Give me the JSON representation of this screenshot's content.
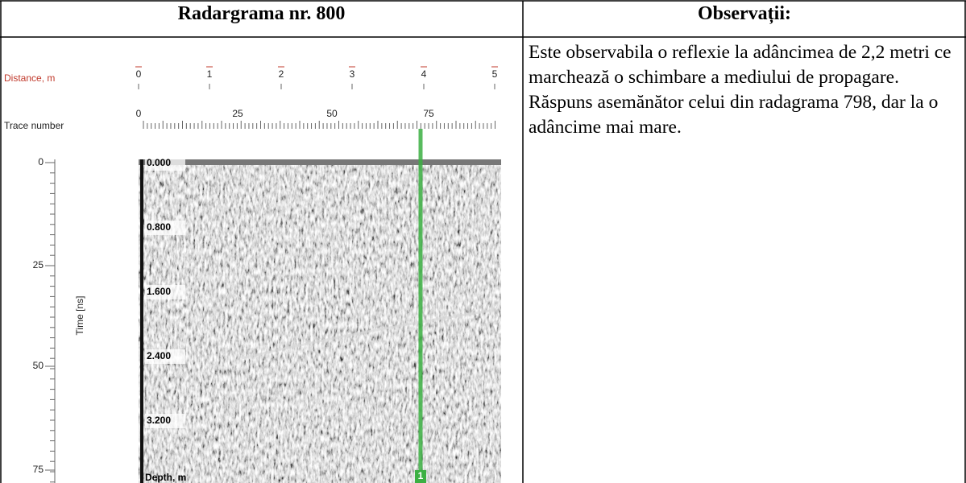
{
  "table": {
    "headers": [
      "Radargrama nr. 800",
      "Observații:"
    ],
    "observations": [
      "Este observabila o reflexie la adâncimea de 2,2 metri ce marchează o schimbare a mediului de propagare.",
      "Răspuns asemănător celui din radagrama 798, dar la o adâncime mai mare."
    ],
    "radargram": {
      "distance_label": "Distance, m",
      "distance_ticks": [
        "0",
        "1",
        "2",
        "3",
        "4",
        "5"
      ],
      "trace_label": "Trace number",
      "trace_ticks": [
        "0",
        "25",
        "50",
        "75"
      ],
      "time_label": "Time [ns]",
      "time_ticks": [
        "0",
        "25",
        "50",
        "75"
      ],
      "depth_ticks": [
        "0.000",
        "0.800",
        "1.600",
        "2.400",
        "3.200"
      ],
      "depth_label": "Depth, m",
      "marker": "1"
    }
  }
}
